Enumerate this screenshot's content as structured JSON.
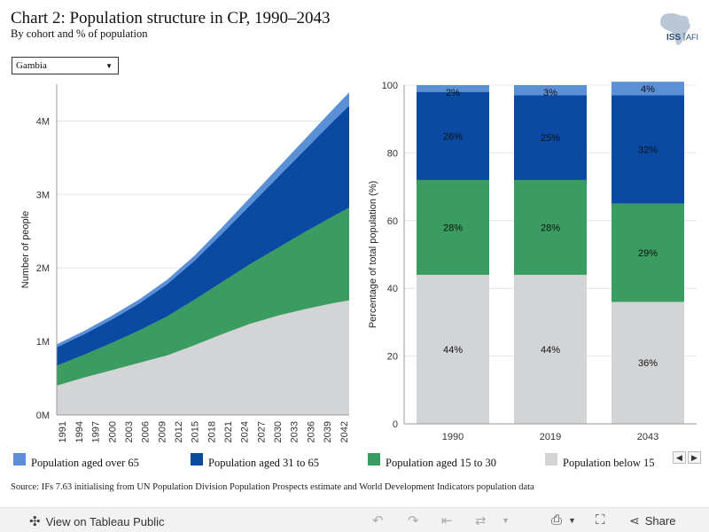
{
  "header": {
    "title": "Chart 2: Population structure in CP, 1990–2043",
    "subtitle": "By cohort and % of population",
    "logo_text": "ISS|AFI"
  },
  "filter": {
    "selected": "Gambia"
  },
  "colors": {
    "over65": "#5b8fd6",
    "aged31_65": "#0a4aa3",
    "aged15_30": "#3a9c60",
    "below15": "#d3d4d6",
    "gridline": "#e4e4e4",
    "axis": "#999999"
  },
  "legend": {
    "items": [
      {
        "label": "Population aged over 65",
        "color": "#5b8fd6"
      },
      {
        "label": "Population aged 31 to 65",
        "color": "#0a4aa3"
      },
      {
        "label": "Population aged 15 to 30",
        "color": "#3a9c60"
      },
      {
        "label": "Population below 15",
        "color": "#d3d4d6"
      }
    ]
  },
  "source": "Source: IFs 7.63 initialising from UN Population Division Population Prospects estimate and World Development Indicators population data",
  "toolbar": {
    "view_label": "View on Tableau Public",
    "share_label": "Share"
  },
  "chart_data": [
    {
      "type": "area",
      "ylabel": "Number of people",
      "ylim": [
        0,
        4500000
      ],
      "y_ticks": [
        0,
        1000000,
        2000000,
        3000000,
        4000000
      ],
      "y_tick_labels": [
        "0M",
        "1M",
        "2M",
        "3M",
        "4M"
      ],
      "x_tick_labels": [
        "1991",
        "1994",
        "1997",
        "2000",
        "2003",
        "2006",
        "2009",
        "2012",
        "2015",
        "2018",
        "2021",
        "2024",
        "2027",
        "2030",
        "2033",
        "2036",
        "2039",
        "2042"
      ],
      "grid": true,
      "stacked": true,
      "x": [
        1990,
        1995,
        2000,
        2005,
        2010,
        2015,
        2020,
        2025,
        2030,
        2035,
        2040,
        2043
      ],
      "series": [
        {
          "name": "Population below 15",
          "values": [
            400000,
            510000,
            610000,
            710000,
            810000,
            950000,
            1100000,
            1240000,
            1350000,
            1440000,
            1520000,
            1560000
          ]
        },
        {
          "name": "Population aged 15 to 30",
          "values": [
            270000,
            310000,
            370000,
            440000,
            530000,
            620000,
            710000,
            810000,
            920000,
            1050000,
            1180000,
            1260000
          ]
        },
        {
          "name": "Population aged 31 to 65",
          "values": [
            250000,
            280000,
            320000,
            370000,
            440000,
            530000,
            660000,
            800000,
            960000,
            1120000,
            1290000,
            1390000
          ]
        },
        {
          "name": "Population aged over 65",
          "values": [
            40000,
            45000,
            50000,
            55000,
            60000,
            70000,
            85000,
            105000,
            125000,
            145000,
            165000,
            180000
          ]
        }
      ]
    },
    {
      "type": "bar",
      "stacked": true,
      "ylabel": "Percentage of total population (%)",
      "ylim": [
        0,
        100
      ],
      "y_ticks": [
        0,
        20,
        40,
        60,
        80,
        100
      ],
      "categories": [
        "1990",
        "2019",
        "2043"
      ],
      "grid": true,
      "series": [
        {
          "name": "Population below 15",
          "values": [
            44,
            44,
            36
          ],
          "labels": [
            "44%",
            "44%",
            "36%"
          ]
        },
        {
          "name": "Population aged 15 to 30",
          "values": [
            28,
            28,
            29
          ],
          "labels": [
            "28%",
            "28%",
            "29%"
          ]
        },
        {
          "name": "Population aged 31 to 65",
          "values": [
            26,
            25,
            32
          ],
          "labels": [
            "26%",
            "25%",
            "32%"
          ]
        },
        {
          "name": "Population aged over 65",
          "values": [
            2,
            3,
            4
          ],
          "labels": [
            "2%",
            "3%",
            "4%"
          ]
        }
      ]
    }
  ]
}
